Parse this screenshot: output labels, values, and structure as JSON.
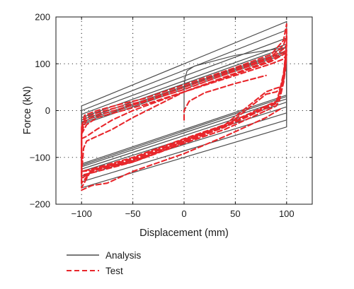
{
  "chart_data": {
    "type": "line",
    "xlabel": "Displacement (mm)",
    "ylabel": "Force (kN)",
    "xlim": [
      -125,
      125
    ],
    "ylim": [
      -200,
      200
    ],
    "x_ticks": [
      -100,
      -50,
      0,
      50,
      100
    ],
    "y_ticks": [
      -200,
      -100,
      0,
      100,
      200
    ],
    "x_tick_labels": [
      "−100",
      "−50",
      "0",
      "50",
      "100"
    ],
    "y_tick_labels": [
      "−200",
      "−100",
      "0",
      "100",
      "200"
    ],
    "grid": true,
    "grid_style": "dotted",
    "legend_position": "below",
    "series": [
      {
        "name": "Analysis",
        "color": "#4d4d4d",
        "style": "solid",
        "loops": [
          {
            "upper": [
              [
                -100,
                10
              ],
              [
                100,
                190
              ]
            ],
            "lower": [
              [
                100,
                -35
              ],
              [
                -100,
                -165
              ]
            ]
          },
          {
            "upper": [
              [
                -100,
                0
              ],
              [
                100,
                172
              ]
            ],
            "lower": [
              [
                100,
                -20
              ],
              [
                -100,
                -152
              ]
            ]
          },
          {
            "upper": [
              [
                -100,
                -8
              ],
              [
                100,
                155
              ]
            ],
            "lower": [
              [
                100,
                -5
              ],
              [
                -100,
                -140
              ]
            ]
          },
          {
            "upper": [
              [
                -100,
                -15
              ],
              [
                100,
                142
              ]
            ],
            "lower": [
              [
                100,
                8
              ],
              [
                -100,
                -130
              ]
            ]
          },
          {
            "upper": [
              [
                -100,
                -20
              ],
              [
                100,
                135
              ]
            ],
            "lower": [
              [
                100,
                18
              ],
              [
                -100,
                -125
              ]
            ]
          },
          {
            "upper": [
              [
                -100,
                -24
              ],
              [
                100,
                128
              ]
            ],
            "lower": [
              [
                100,
                25
              ],
              [
                -100,
                -120
              ]
            ]
          },
          {
            "upper": [
              [
                -100,
                -27
              ],
              [
                100,
                125
              ]
            ],
            "lower": [
              [
                100,
                30
              ],
              [
                -100,
                -117
              ]
            ]
          },
          {
            "upper": [
              [
                -100,
                -30
              ],
              [
                100,
                122
              ]
            ],
            "lower": [
              [
                100,
                33
              ],
              [
                -100,
                -114
              ]
            ]
          }
        ],
        "initial_branch": [
          [
            0,
            0
          ],
          [
            0,
            50
          ],
          [
            1,
            70
          ],
          [
            3,
            85
          ],
          [
            10,
            95
          ],
          [
            50,
            118
          ],
          [
            100,
            135
          ]
        ]
      },
      {
        "name": "Test",
        "color": "#e8262b",
        "style": "dashed",
        "loops": [
          {
            "upper": [
              [
                -100,
                -35
              ],
              [
                -97,
                -10
              ],
              [
                -85,
                0
              ],
              [
                -60,
                15
              ],
              [
                -40,
                25
              ],
              [
                0,
                55
              ],
              [
                50,
                92
              ],
              [
                85,
                120
              ],
              [
                97,
                150
              ],
              [
                100,
                185
              ]
            ],
            "lower": [
              [
                100,
                150
              ],
              [
                99,
                120
              ],
              [
                97,
                80
              ],
              [
                93,
                40
              ],
              [
                90,
                20
              ],
              [
                80,
                10
              ],
              [
                40,
                -30
              ],
              [
                0,
                -60
              ],
              [
                -50,
                -100
              ],
              [
                -90,
                -125
              ],
              [
                -100,
                -165
              ]
            ]
          },
          {
            "upper": [
              [
                -100,
                -40
              ],
              [
                -96,
                -15
              ],
              [
                -85,
                -5
              ],
              [
                -60,
                10
              ],
              [
                -40,
                20
              ],
              [
                0,
                50
              ],
              [
                50,
                88
              ],
              [
                85,
                115
              ],
              [
                97,
                140
              ],
              [
                100,
                160
              ]
            ],
            "lower": [
              [
                100,
                145
              ],
              [
                99,
                115
              ],
              [
                97,
                75
              ],
              [
                93,
                35
              ],
              [
                90,
                18
              ],
              [
                80,
                8
              ],
              [
                40,
                -32
              ],
              [
                0,
                -62
              ],
              [
                -50,
                -102
              ],
              [
                -90,
                -128
              ],
              [
                -100,
                -155
              ]
            ]
          },
          {
            "upper": [
              [
                -100,
                -45
              ],
              [
                -95,
                -20
              ],
              [
                -85,
                -10
              ],
              [
                -60,
                5
              ],
              [
                -40,
                18
              ],
              [
                0,
                45
              ],
              [
                50,
                85
              ],
              [
                85,
                112
              ],
              [
                97,
                132
              ],
              [
                100,
                140
              ]
            ],
            "lower": [
              [
                100,
                140
              ],
              [
                99,
                110
              ],
              [
                97,
                70
              ],
              [
                93,
                30
              ],
              [
                90,
                15
              ],
              [
                80,
                5
              ],
              [
                40,
                -35
              ],
              [
                0,
                -65
              ],
              [
                -50,
                -105
              ],
              [
                -90,
                -130
              ],
              [
                -100,
                -145
              ]
            ]
          },
          {
            "upper": [
              [
                -100,
                -50
              ],
              [
                -95,
                -30
              ],
              [
                -85,
                -15
              ],
              [
                -60,
                0
              ],
              [
                -40,
                12
              ],
              [
                0,
                40
              ],
              [
                50,
                80
              ],
              [
                85,
                108
              ],
              [
                97,
                125
              ],
              [
                100,
                130
              ]
            ],
            "lower": [
              [
                100,
                130
              ],
              [
                99,
                100
              ],
              [
                97,
                60
              ],
              [
                93,
                22
              ],
              [
                90,
                10
              ],
              [
                80,
                0
              ],
              [
                40,
                -40
              ],
              [
                0,
                -70
              ],
              [
                -50,
                -110
              ],
              [
                -90,
                -133
              ],
              [
                -100,
                -138
              ]
            ]
          },
          {
            "upper": [
              [
                -100,
                -60
              ],
              [
                -95,
                -55
              ],
              [
                -85,
                -40
              ],
              [
                -70,
                -20
              ],
              [
                -50,
                0
              ],
              [
                0,
                40
              ],
              [
                50,
                78
              ],
              [
                85,
                105
              ],
              [
                97,
                120
              ],
              [
                100,
                125
              ]
            ],
            "lower": [
              [
                100,
                125
              ],
              [
                99,
                95
              ],
              [
                97,
                65
              ],
              [
                93,
                45
              ],
              [
                90,
                40
              ],
              [
                80,
                35
              ],
              [
                40,
                -35
              ],
              [
                0,
                -68
              ],
              [
                -50,
                -110
              ],
              [
                -90,
                -128
              ],
              [
                -100,
                -130
              ]
            ]
          },
          {
            "upper": [
              [
                -100,
                -135
              ],
              [
                -98,
                -80
              ],
              [
                -95,
                -65
              ],
              [
                -85,
                -55
              ],
              [
                -70,
                -40
              ],
              [
                -50,
                -15
              ],
              [
                0,
                40
              ],
              [
                50,
                75
              ],
              [
                85,
                100
              ],
              [
                97,
                110
              ],
              [
                100,
                120
              ]
            ],
            "lower": [
              [
                100,
                120
              ],
              [
                99,
                90
              ],
              [
                97,
                60
              ],
              [
                93,
                50
              ],
              [
                90,
                48
              ],
              [
                80,
                40
              ],
              [
                40,
                -30
              ],
              [
                0,
                -65
              ],
              [
                -50,
                -108
              ],
              [
                -90,
                -125
              ],
              [
                -100,
                -130
              ]
            ]
          }
        ],
        "initial_branch": [
          [
            0,
            -20
          ],
          [
            0,
            0
          ],
          [
            5,
            20
          ],
          [
            20,
            38
          ],
          [
            50,
            58
          ],
          [
            80,
            75
          ]
        ],
        "extra_curve": [
          [
            -100,
            -170
          ],
          [
            -90,
            -160
          ],
          [
            -75,
            -155
          ],
          [
            -50,
            -130
          ],
          [
            0,
            -92
          ],
          [
            40,
            -55
          ],
          [
            80,
            -15
          ],
          [
            95,
            5
          ]
        ]
      }
    ]
  }
}
